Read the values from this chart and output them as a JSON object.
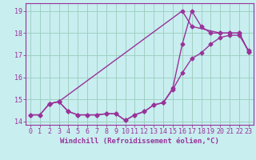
{
  "line1_x": [
    0,
    1,
    2,
    3,
    4,
    5,
    6,
    7,
    8,
    9,
    10,
    11,
    12,
    13,
    14,
    15,
    16,
    17,
    18,
    19,
    20,
    21,
    22,
    23
  ],
  "line1_y": [
    14.3,
    14.3,
    14.8,
    14.9,
    14.45,
    14.3,
    14.3,
    14.3,
    14.35,
    14.35,
    14.05,
    14.3,
    14.45,
    14.75,
    14.85,
    15.5,
    17.5,
    19.0,
    18.3,
    18.0,
    18.0,
    18.0,
    18.0,
    17.15
  ],
  "line2_x": [
    0,
    1,
    2,
    3,
    4,
    5,
    6,
    7,
    8,
    9,
    10,
    11,
    12,
    13,
    14,
    15,
    16,
    17,
    18,
    19,
    20,
    21,
    22,
    23
  ],
  "line2_y": [
    14.3,
    14.3,
    14.8,
    14.9,
    14.45,
    14.3,
    14.3,
    14.3,
    14.35,
    14.35,
    14.05,
    14.3,
    14.45,
    14.75,
    14.85,
    15.45,
    16.2,
    16.85,
    17.1,
    17.5,
    17.8,
    17.9,
    17.9,
    17.2
  ],
  "line3_x": [
    2,
    3,
    16,
    17,
    20,
    21,
    22,
    23
  ],
  "line3_y": [
    14.8,
    14.9,
    19.0,
    18.3,
    18.0,
    18.0,
    18.0,
    17.15
  ],
  "color": "#993399",
  "bg_color": "#c8eef0",
  "grid_color": "#99ccbb",
  "xlabel": "Windchill (Refroidissement éolien,°C)",
  "xlim": [
    -0.5,
    23.5
  ],
  "ylim": [
    13.85,
    19.35
  ],
  "xticks": [
    0,
    1,
    2,
    3,
    4,
    5,
    6,
    7,
    8,
    9,
    10,
    11,
    12,
    13,
    14,
    15,
    16,
    17,
    18,
    19,
    20,
    21,
    22,
    23
  ],
  "yticks": [
    14,
    15,
    16,
    17,
    18,
    19
  ],
  "label_fontsize": 6.5,
  "tick_fontsize": 6.0,
  "line_width": 1.0,
  "marker": "D",
  "marker_size": 2.5
}
